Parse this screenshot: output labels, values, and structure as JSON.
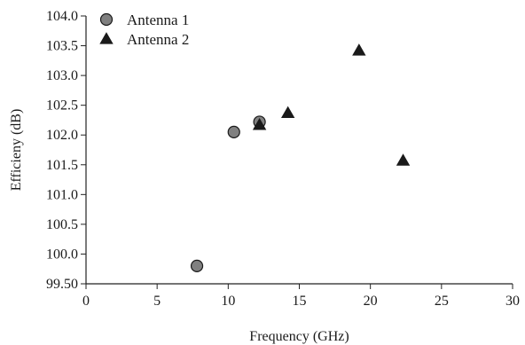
{
  "chart_data": {
    "type": "scatter",
    "title": "",
    "xlabel": "Frequency (GHz)",
    "ylabel": "Efficieny (dB)",
    "xlim": [
      0,
      30
    ],
    "ylim": [
      99.5,
      104.0
    ],
    "x_ticks": [
      0,
      5,
      10,
      15,
      20,
      25,
      30
    ],
    "x_tick_labels": [
      "0",
      "5",
      "10",
      "15",
      "20",
      "25",
      "30"
    ],
    "y_ticks": [
      99.5,
      100.0,
      100.5,
      101.0,
      101.5,
      102.0,
      102.5,
      103.0,
      103.5,
      104.0
    ],
    "y_tick_labels": [
      "99.50",
      "100.0",
      "100.5",
      "101.0",
      "101.5",
      "102.0",
      "102.5",
      "103.0",
      "103.5",
      "104.0"
    ],
    "grid": false,
    "legend_position": "top-left",
    "series": [
      {
        "name": "Antenna 1",
        "marker": "circle",
        "color": "#808080",
        "points": [
          [
            7.8,
            99.8
          ],
          [
            10.4,
            102.05
          ],
          [
            12.2,
            102.22
          ]
        ]
      },
      {
        "name": "Antenna 2",
        "marker": "triangle",
        "color": "#1a1a1a",
        "points": [
          [
            12.2,
            102.17
          ],
          [
            14.2,
            102.37
          ],
          [
            19.2,
            103.42
          ],
          [
            22.3,
            101.57
          ]
        ]
      }
    ]
  }
}
